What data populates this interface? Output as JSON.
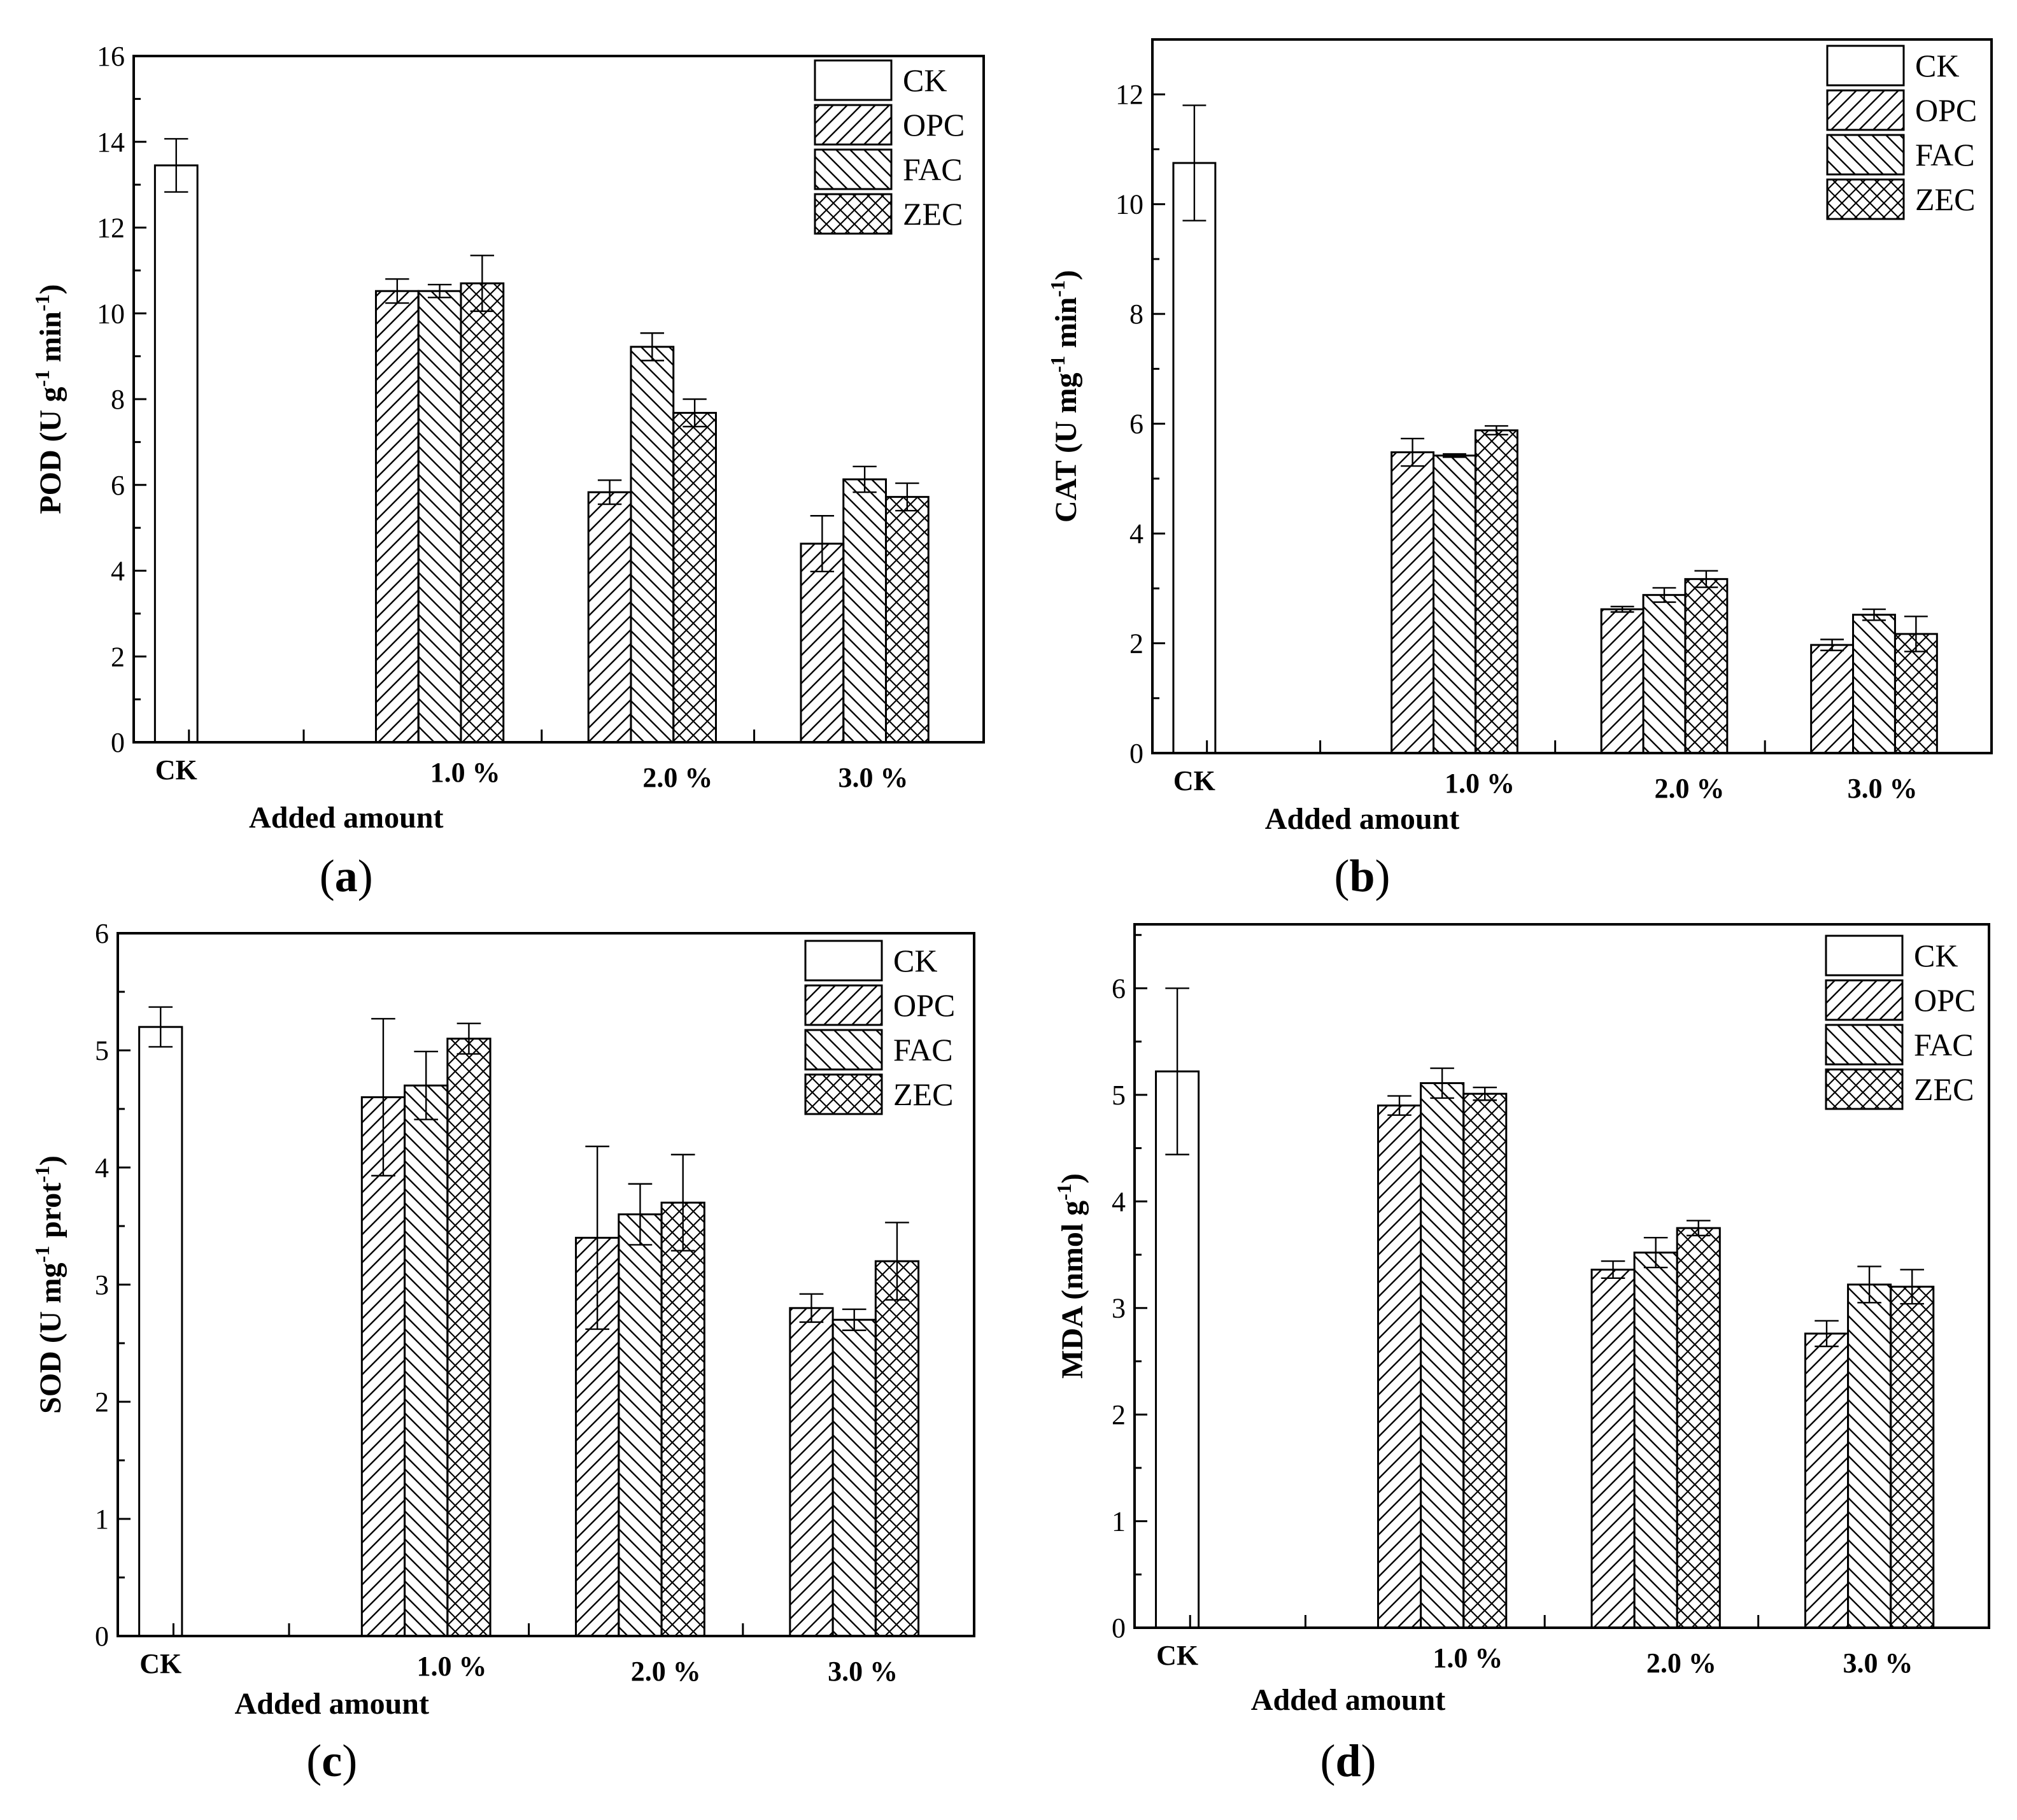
{
  "figure": {
    "legend": [
      "CK",
      "OPC",
      "FAC",
      "ZEC"
    ],
    "x_axis_title": "Added amount"
  },
  "chart_data": [
    {
      "type": "bar",
      "panel": "(a)",
      "panel_letter": "a",
      "ylabel": "POD (U g-1 min-1)",
      "ylabel_parts": [
        "POD (U g",
        "-1",
        " min",
        "-1",
        ")"
      ],
      "ylim": [
        0,
        16
      ],
      "yticks": [
        0,
        2,
        4,
        6,
        8,
        10,
        12,
        14,
        16
      ],
      "categories": [
        "CK",
        "1.0 %",
        "2.0 %",
        "3.0 %"
      ],
      "series": [
        {
          "name": "CK",
          "values": [
            13.45,
            null,
            null,
            null
          ],
          "errors": [
            0.62,
            null,
            null,
            null
          ]
        },
        {
          "name": "OPC",
          "values": [
            null,
            10.52,
            5.83,
            4.63
          ],
          "errors": [
            null,
            0.28,
            0.28,
            0.65
          ]
        },
        {
          "name": "FAC",
          "values": [
            null,
            10.52,
            9.22,
            6.13
          ],
          "errors": [
            null,
            0.15,
            0.32,
            0.3
          ]
        },
        {
          "name": "ZEC",
          "values": [
            null,
            10.7,
            7.68,
            5.72
          ],
          "errors": [
            null,
            0.65,
            0.32,
            0.32
          ]
        }
      ]
    },
    {
      "type": "bar",
      "panel": "(b)",
      "panel_letter": "b",
      "ylabel": "CAT (U mg-1 min-1)",
      "ylabel_parts": [
        "CAT (U mg",
        "-1",
        " min",
        "-1",
        ")"
      ],
      "ylim": [
        0,
        13
      ],
      "yticks": [
        0,
        2,
        4,
        6,
        8,
        10,
        12
      ],
      "categories": [
        "CK",
        "1.0 %",
        "2.0 %",
        "3.0 %"
      ],
      "series": [
        {
          "name": "CK",
          "values": [
            10.75,
            null,
            null,
            null
          ],
          "errors": [
            1.05,
            null,
            null,
            null
          ]
        },
        {
          "name": "OPC",
          "values": [
            null,
            5.48,
            2.62,
            1.97
          ],
          "errors": [
            null,
            0.25,
            0.05,
            0.1
          ]
        },
        {
          "name": "FAC",
          "values": [
            null,
            5.42,
            2.88,
            2.52
          ],
          "errors": [
            null,
            0.03,
            0.13,
            0.1
          ]
        },
        {
          "name": "ZEC",
          "values": [
            null,
            5.88,
            3.17,
            2.17
          ],
          "errors": [
            null,
            0.08,
            0.15,
            0.32
          ]
        }
      ]
    },
    {
      "type": "bar",
      "panel": "(c)",
      "panel_letter": "c",
      "ylabel": "SOD (U mg-1 prot-1)",
      "ylabel_parts": [
        "SOD (U mg",
        "-1",
        " prot",
        "-1",
        ")"
      ],
      "ylim": [
        0,
        6
      ],
      "yticks": [
        0,
        1,
        2,
        3,
        4,
        5,
        6
      ],
      "categories": [
        "CK",
        "1.0 %",
        "2.0 %",
        "3.0 %"
      ],
      "series": [
        {
          "name": "CK",
          "values": [
            5.2,
            null,
            null,
            null
          ],
          "errors": [
            0.17,
            null,
            null,
            null
          ]
        },
        {
          "name": "OPC",
          "values": [
            null,
            4.6,
            3.4,
            2.8
          ],
          "errors": [
            null,
            0.67,
            0.78,
            0.12
          ]
        },
        {
          "name": "FAC",
          "values": [
            null,
            4.7,
            3.6,
            2.7
          ],
          "errors": [
            null,
            0.29,
            0.26,
            0.09
          ]
        },
        {
          "name": "ZEC",
          "values": [
            null,
            5.1,
            3.7,
            3.2
          ],
          "errors": [
            null,
            0.13,
            0.41,
            0.33
          ]
        }
      ]
    },
    {
      "type": "bar",
      "panel": "(d)",
      "panel_letter": "d",
      "ylabel": "MDA (nmol g-1)",
      "ylabel_parts": [
        "MDA (nmol g",
        "-1",
        ")"
      ],
      "ylim": [
        0,
        6.6
      ],
      "yticks": [
        0,
        1,
        2,
        3,
        4,
        5,
        6
      ],
      "categories": [
        "CK",
        "1.0 %",
        "2.0 %",
        "3.0 %"
      ],
      "series": [
        {
          "name": "CK",
          "values": [
            5.22,
            null,
            null,
            null
          ],
          "errors": [
            0.78,
            null,
            null,
            null
          ]
        },
        {
          "name": "OPC",
          "values": [
            null,
            4.9,
            3.36,
            2.76
          ],
          "errors": [
            null,
            0.09,
            0.08,
            0.12
          ]
        },
        {
          "name": "FAC",
          "values": [
            null,
            5.11,
            3.52,
            3.22
          ],
          "errors": [
            null,
            0.14,
            0.14,
            0.17
          ]
        },
        {
          "name": "ZEC",
          "values": [
            null,
            5.01,
            3.75,
            3.2
          ],
          "errors": [
            null,
            0.06,
            0.07,
            0.16
          ]
        }
      ]
    }
  ]
}
